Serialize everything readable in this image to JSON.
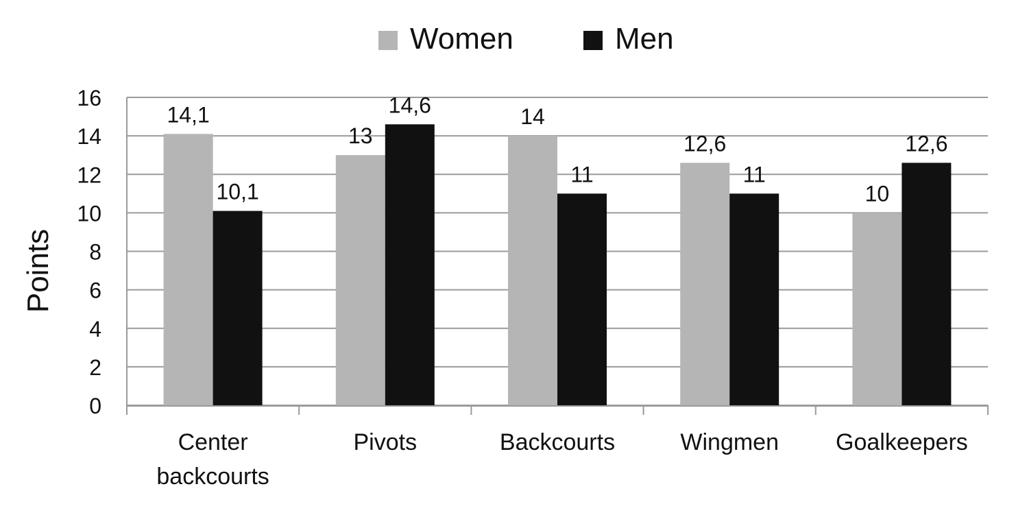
{
  "chart_data": {
    "type": "bar",
    "title": "",
    "xlabel": "",
    "ylabel": "Points",
    "ylim": [
      0,
      16
    ],
    "yticks": [
      "0",
      "2",
      "4",
      "6",
      "8",
      "10",
      "12",
      "14",
      "16"
    ],
    "grid": true,
    "legend_position": "top-center",
    "categories": [
      [
        "Center",
        "backcourts"
      ],
      [
        "Pivots"
      ],
      [
        "Backcourts"
      ],
      [
        "Wingmen"
      ],
      [
        "Goalkeepers"
      ]
    ],
    "series": [
      {
        "name": "Women",
        "color": "#b5b5b5",
        "values": [
          14.1,
          13,
          14,
          12.6,
          10
        ],
        "labels": [
          "14,1",
          "13",
          "14",
          "12,6",
          "10"
        ]
      },
      {
        "name": "Men",
        "color": "#111111",
        "values": [
          10.1,
          14.6,
          11,
          11,
          12.6
        ],
        "labels": [
          "10,1",
          "14,6",
          "11",
          "11",
          "12,6"
        ]
      }
    ]
  }
}
